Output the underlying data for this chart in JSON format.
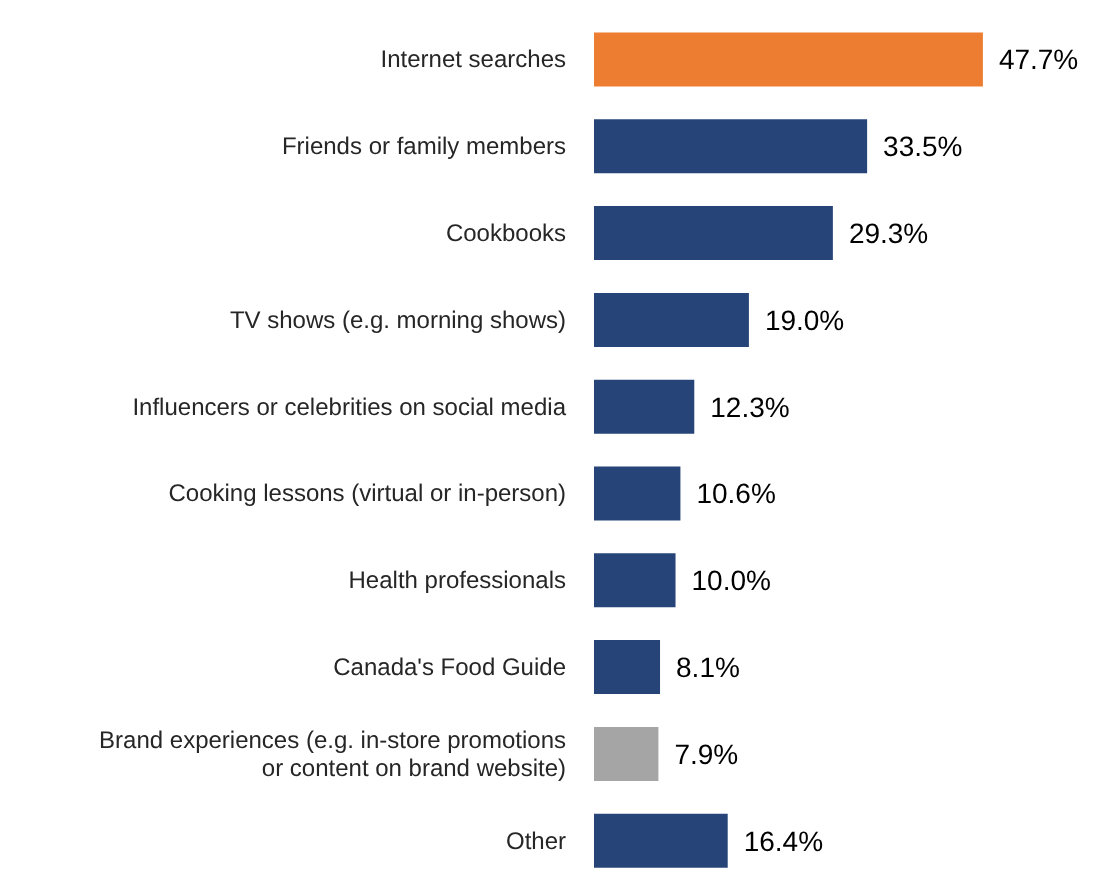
{
  "chart_data": {
    "type": "bar",
    "orientation": "horizontal",
    "categories": [
      "Internet searches",
      "Friends or family members",
      "Cookbooks",
      "TV shows (e.g. morning shows)",
      "Influencers or celebrities on social media",
      "Cooking lessons (virtual or in-person)",
      "Health professionals",
      "Canada's Food Guide",
      "Brand experiences (e.g. in-store promotions\nor content on brand website)",
      "Other"
    ],
    "values": [
      47.7,
      33.5,
      29.3,
      19.0,
      12.3,
      10.6,
      10.0,
      8.1,
      7.9,
      16.4
    ],
    "value_labels": [
      "47.7%",
      "33.5%",
      "29.3%",
      "19.0%",
      "12.3%",
      "10.6%",
      "10.0%",
      "8.1%",
      "7.9%",
      "16.4%"
    ],
    "colors": [
      "#ed7d31",
      "#264478",
      "#264478",
      "#264478",
      "#264478",
      "#264478",
      "#264478",
      "#264478",
      "#a5a5a5",
      "#264478"
    ],
    "legend": false,
    "grid": false
  }
}
